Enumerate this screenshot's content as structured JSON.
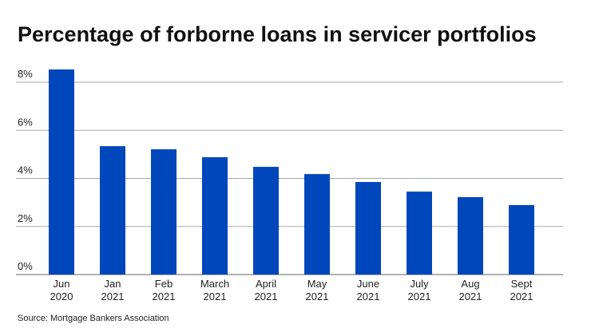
{
  "chart_data": {
    "type": "bar",
    "title": "Percentage of forborne loans in servicer portfolios",
    "categories": [
      "Jun\n2020",
      "Jan\n2021",
      "Feb\n2021",
      "March\n2021",
      "April\n2021",
      "May\n2021",
      "June\n2021",
      "July\n2021",
      "Aug\n2021",
      "Sept\n2021"
    ],
    "values": [
      8.53,
      5.34,
      5.21,
      4.88,
      4.48,
      4.18,
      3.85,
      3.45,
      3.22,
      2.89
    ],
    "color": "#0047bb",
    "ylim": [
      0,
      8
    ],
    "yticks": [
      {
        "value": 0,
        "label": "0%"
      },
      {
        "value": 2,
        "label": "2%"
      },
      {
        "value": 4,
        "label": "4%"
      },
      {
        "value": 6,
        "label": "6%"
      },
      {
        "value": 8,
        "label": "8%"
      }
    ],
    "grid": true,
    "source": "Source: Mortgage Bankers Association"
  }
}
